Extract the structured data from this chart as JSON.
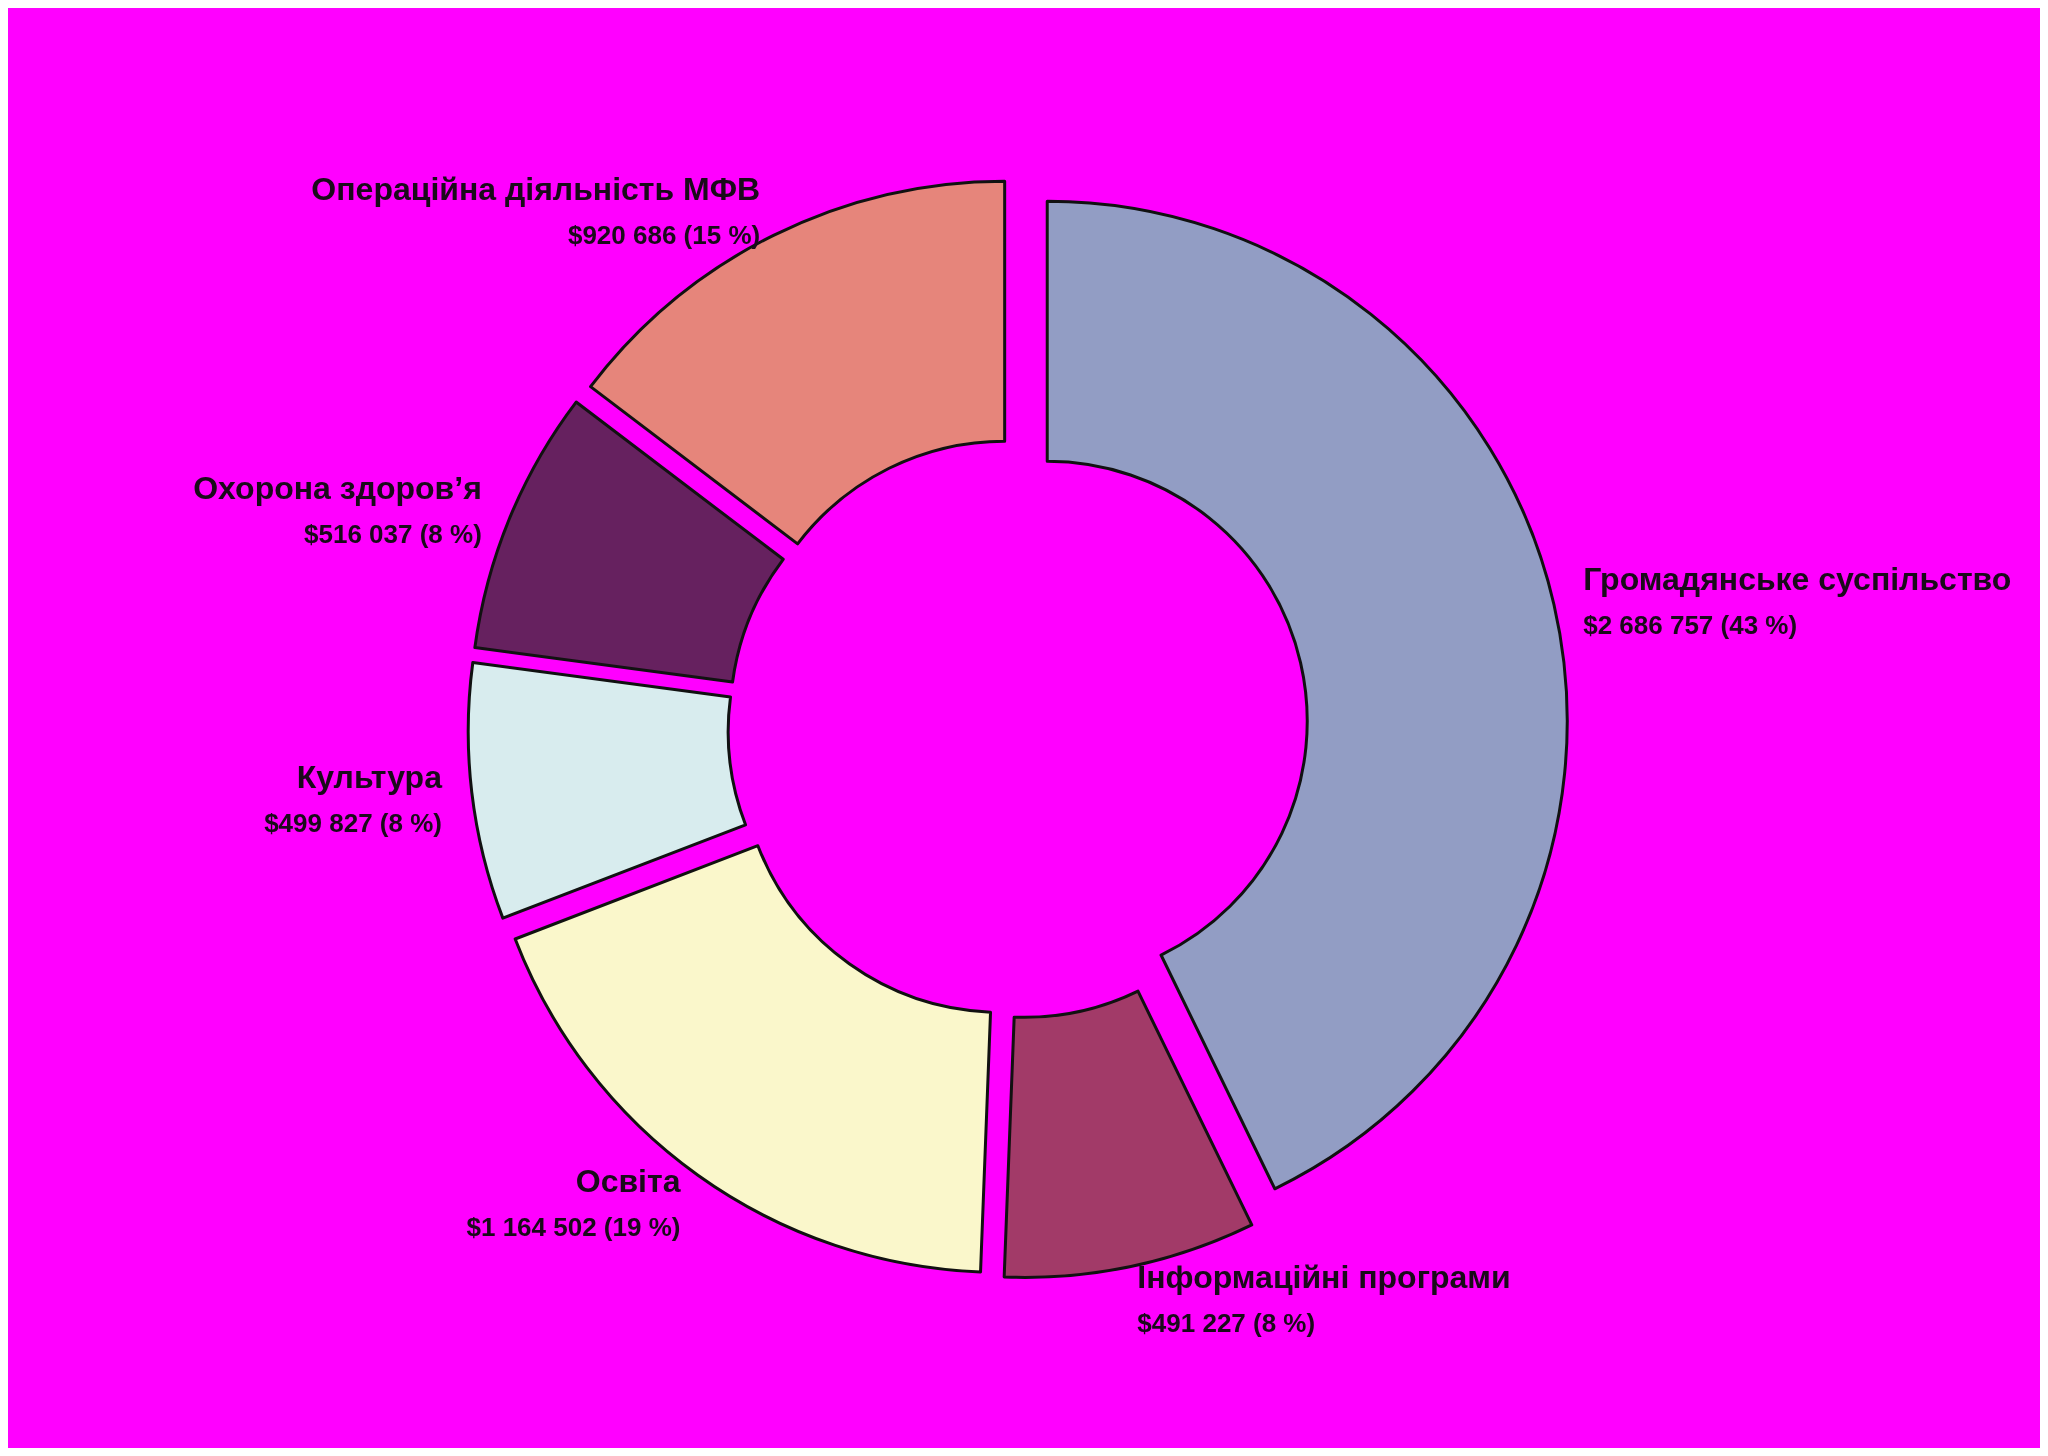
{
  "chart_data": {
    "type": "donut",
    "categories": [
      "Громадянське суспільство",
      "Інформаційні програми",
      "Освіта",
      "Культура",
      "Охорона здоров’я",
      "Операційна діяльність МФВ"
    ],
    "values": [
      2686757,
      491227,
      1164502,
      499827,
      516037,
      920686
    ],
    "value_labels": [
      "$2 686 757 (43 %)",
      "$491 227 (8 %)",
      "$1 164 502 (19 %)",
      "$499 827 (8 %)",
      "$516 037 (8 %)",
      "$920 686 (15 %)"
    ],
    "colors": [
      "#929dc4",
      "#a23a68",
      "#faf7cb",
      "#d8ecee",
      "#66215f",
      "#e6857b"
    ],
    "legend": false
  }
}
